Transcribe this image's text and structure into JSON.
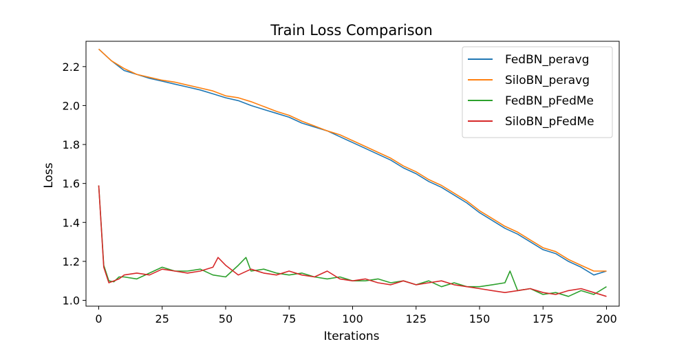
{
  "chart_data": {
    "type": "line",
    "title": "Train Loss Comparison",
    "xlabel": "Iterations",
    "ylabel": "Loss",
    "xlim": [
      -5,
      205
    ],
    "ylim": [
      0.97,
      2.33
    ],
    "xticks": [
      0,
      25,
      50,
      75,
      100,
      125,
      150,
      175,
      200
    ],
    "yticks": [
      1.0,
      1.2,
      1.4,
      1.6,
      1.8,
      2.0,
      2.2
    ],
    "grid": false,
    "legend_position": "top-right",
    "series": [
      {
        "name": "FedBN_peravg",
        "color": "#1f77b4",
        "x": [
          0,
          5,
          10,
          15,
          20,
          25,
          30,
          35,
          40,
          45,
          50,
          55,
          60,
          65,
          70,
          75,
          80,
          85,
          90,
          95,
          100,
          105,
          110,
          115,
          120,
          125,
          130,
          135,
          140,
          145,
          150,
          155,
          160,
          165,
          170,
          175,
          180,
          185,
          190,
          195,
          200
        ],
        "y": [
          2.29,
          2.23,
          2.18,
          2.16,
          2.14,
          2.125,
          2.11,
          2.095,
          2.08,
          2.06,
          2.04,
          2.025,
          2.0,
          1.98,
          1.96,
          1.94,
          1.91,
          1.89,
          1.87,
          1.84,
          1.81,
          1.78,
          1.75,
          1.72,
          1.68,
          1.65,
          1.61,
          1.58,
          1.54,
          1.5,
          1.45,
          1.41,
          1.37,
          1.34,
          1.3,
          1.26,
          1.24,
          1.2,
          1.17,
          1.13,
          1.15
        ]
      },
      {
        "name": "SiloBN_peravg",
        "color": "#ff7f0e",
        "x": [
          0,
          5,
          10,
          15,
          20,
          25,
          30,
          35,
          40,
          45,
          50,
          55,
          60,
          65,
          70,
          75,
          80,
          85,
          90,
          95,
          100,
          105,
          110,
          115,
          120,
          125,
          130,
          135,
          140,
          145,
          150,
          155,
          160,
          165,
          170,
          175,
          180,
          185,
          190,
          195,
          200
        ],
        "y": [
          2.29,
          2.23,
          2.19,
          2.16,
          2.145,
          2.13,
          2.12,
          2.105,
          2.09,
          2.075,
          2.05,
          2.04,
          2.02,
          1.995,
          1.97,
          1.95,
          1.92,
          1.895,
          1.87,
          1.85,
          1.82,
          1.79,
          1.76,
          1.73,
          1.69,
          1.66,
          1.62,
          1.59,
          1.55,
          1.51,
          1.46,
          1.42,
          1.38,
          1.35,
          1.31,
          1.27,
          1.25,
          1.21,
          1.18,
          1.15,
          1.15
        ]
      },
      {
        "name": "FedBN_pFedMe",
        "color": "#2ca02c",
        "x": [
          0,
          2,
          4,
          6,
          8,
          10,
          15,
          20,
          25,
          30,
          35,
          40,
          45,
          50,
          55,
          58,
          60,
          65,
          70,
          75,
          80,
          85,
          90,
          95,
          100,
          105,
          110,
          115,
          120,
          125,
          130,
          135,
          140,
          145,
          150,
          155,
          160,
          162,
          165,
          170,
          175,
          180,
          185,
          190,
          195,
          200
        ],
        "y": [
          1.59,
          1.18,
          1.1,
          1.095,
          1.12,
          1.12,
          1.11,
          1.14,
          1.17,
          1.15,
          1.15,
          1.16,
          1.13,
          1.12,
          1.18,
          1.22,
          1.15,
          1.16,
          1.14,
          1.13,
          1.14,
          1.12,
          1.11,
          1.12,
          1.1,
          1.1,
          1.11,
          1.09,
          1.1,
          1.08,
          1.1,
          1.07,
          1.09,
          1.07,
          1.07,
          1.08,
          1.09,
          1.15,
          1.05,
          1.06,
          1.03,
          1.04,
          1.02,
          1.05,
          1.03,
          1.07
        ]
      },
      {
        "name": "SiloBN_pFedMe",
        "color": "#d62728",
        "x": [
          0,
          2,
          4,
          6,
          8,
          10,
          15,
          20,
          25,
          30,
          35,
          40,
          45,
          47,
          50,
          55,
          60,
          65,
          70,
          75,
          80,
          85,
          90,
          95,
          100,
          105,
          110,
          115,
          120,
          125,
          130,
          135,
          140,
          145,
          150,
          155,
          160,
          165,
          170,
          175,
          180,
          185,
          190,
          195,
          200
        ],
        "y": [
          1.59,
          1.17,
          1.09,
          1.1,
          1.11,
          1.13,
          1.14,
          1.13,
          1.16,
          1.15,
          1.14,
          1.15,
          1.17,
          1.22,
          1.18,
          1.13,
          1.16,
          1.14,
          1.13,
          1.15,
          1.13,
          1.12,
          1.15,
          1.11,
          1.1,
          1.11,
          1.09,
          1.08,
          1.1,
          1.08,
          1.09,
          1.1,
          1.08,
          1.07,
          1.06,
          1.05,
          1.04,
          1.05,
          1.06,
          1.04,
          1.03,
          1.05,
          1.06,
          1.04,
          1.02
        ]
      }
    ]
  }
}
